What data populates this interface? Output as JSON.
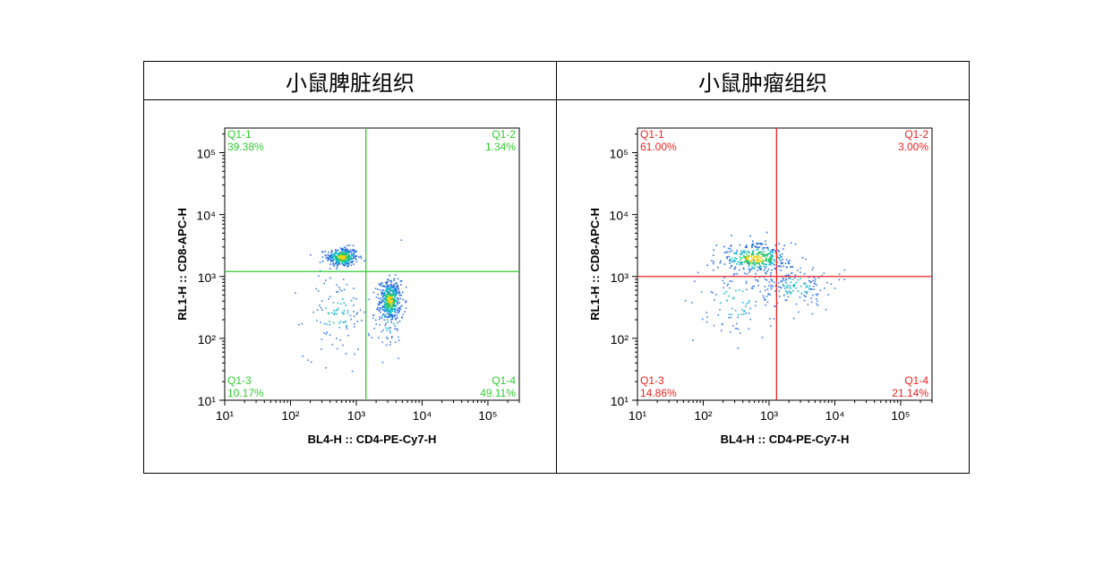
{
  "panels": [
    {
      "title": "小鼠脾脏组织",
      "color": "#33cc33",
      "xlabel": "BL4-H :: CD4-PE-Cy7-H",
      "ylabel": "RL1-H :: CD8-APC-H",
      "gate": {
        "x": 1400,
        "y": 1200
      },
      "quadrants": {
        "q1": {
          "name": "Q1-1",
          "value": "39.38%"
        },
        "q2": {
          "name": "Q1-2",
          "value": "1.34%"
        },
        "q3": {
          "name": "Q1-3",
          "value": "10.17%"
        },
        "q4": {
          "name": "Q1-4",
          "value": "49.11%"
        }
      }
    },
    {
      "title": "小鼠肿瘤组织",
      "color": "#ee2222",
      "xlabel": "BL4-H :: CD4-PE-Cy7-H",
      "ylabel": "RL1-H :: CD8-APC-H",
      "gate": {
        "x": 1300,
        "y": 1000
      },
      "quadrants": {
        "q1": {
          "name": "Q1-1",
          "value": "61.00%"
        },
        "q2": {
          "name": "Q1-2",
          "value": "3.00%"
        },
        "q3": {
          "name": "Q1-3",
          "value": "14.86%"
        },
        "q4": {
          "name": "Q1-4",
          "value": "21.14%"
        }
      }
    }
  ],
  "chart_data": [
    {
      "type": "scatter",
      "title": "小鼠脾脏组织",
      "xlabel": "BL4-H :: CD4-PE-Cy7-H",
      "ylabel": "RL1-H :: CD8-APC-H",
      "xscale": "log",
      "yscale": "log",
      "xlim": [
        10,
        300000
      ],
      "ylim": [
        10,
        250000
      ],
      "x_ticks": [
        "10^1",
        "10^2",
        "10^3",
        "10^4",
        "10^5"
      ],
      "y_ticks": [
        "10^1",
        "10^2",
        "10^3",
        "10^4",
        "10^5"
      ],
      "quadrant_gate": {
        "x": 1400,
        "y": 1200
      },
      "quadrants": [
        {
          "name": "Q1-1",
          "percent": 39.38,
          "position": "top-left"
        },
        {
          "name": "Q1-2",
          "percent": 1.34,
          "position": "top-right"
        },
        {
          "name": "Q1-3",
          "percent": 10.17,
          "position": "bottom-left"
        },
        {
          "name": "Q1-4",
          "percent": 49.11,
          "position": "bottom-right"
        }
      ],
      "populations": [
        {
          "center": [
            600,
            2100
          ],
          "spread": [
            0.12,
            0.08
          ],
          "count": 320,
          "density": "high"
        },
        {
          "center": [
            3200,
            420
          ],
          "spread": [
            0.08,
            0.16
          ],
          "count": 420,
          "density": "high"
        },
        {
          "center": [
            500,
            250
          ],
          "spread": [
            0.25,
            0.35
          ],
          "count": 110,
          "density": "low"
        },
        {
          "center": [
            3000,
            250
          ],
          "spread": [
            0.12,
            0.35
          ],
          "count": 70,
          "density": "low"
        }
      ]
    },
    {
      "type": "scatter",
      "title": "小鼠肿瘤组织",
      "xlabel": "BL4-H :: CD4-PE-Cy7-H",
      "ylabel": "RL1-H :: CD8-APC-H",
      "xscale": "log",
      "yscale": "log",
      "xlim": [
        10,
        300000
      ],
      "ylim": [
        10,
        250000
      ],
      "x_ticks": [
        "10^1",
        "10^2",
        "10^3",
        "10^4",
        "10^5"
      ],
      "y_ticks": [
        "10^1",
        "10^2",
        "10^3",
        "10^4",
        "10^5"
      ],
      "quadrant_gate": {
        "x": 1300,
        "y": 1000
      },
      "quadrants": [
        {
          "name": "Q1-1",
          "percent": 61.0,
          "position": "top-left"
        },
        {
          "name": "Q1-2",
          "percent": 3.0,
          "position": "top-right"
        },
        {
          "name": "Q1-3",
          "percent": 14.86,
          "position": "bottom-left"
        },
        {
          "name": "Q1-4",
          "percent": 21.14,
          "position": "bottom-right"
        }
      ],
      "populations": [
        {
          "center": [
            600,
            2000
          ],
          "spread": [
            0.28,
            0.12
          ],
          "count": 360,
          "density": "high"
        },
        {
          "center": [
            2500,
            700
          ],
          "spread": [
            0.28,
            0.18
          ],
          "count": 180,
          "density": "low"
        },
        {
          "center": [
            300,
            400
          ],
          "spread": [
            0.3,
            0.3
          ],
          "count": 90,
          "density": "low"
        }
      ]
    }
  ]
}
